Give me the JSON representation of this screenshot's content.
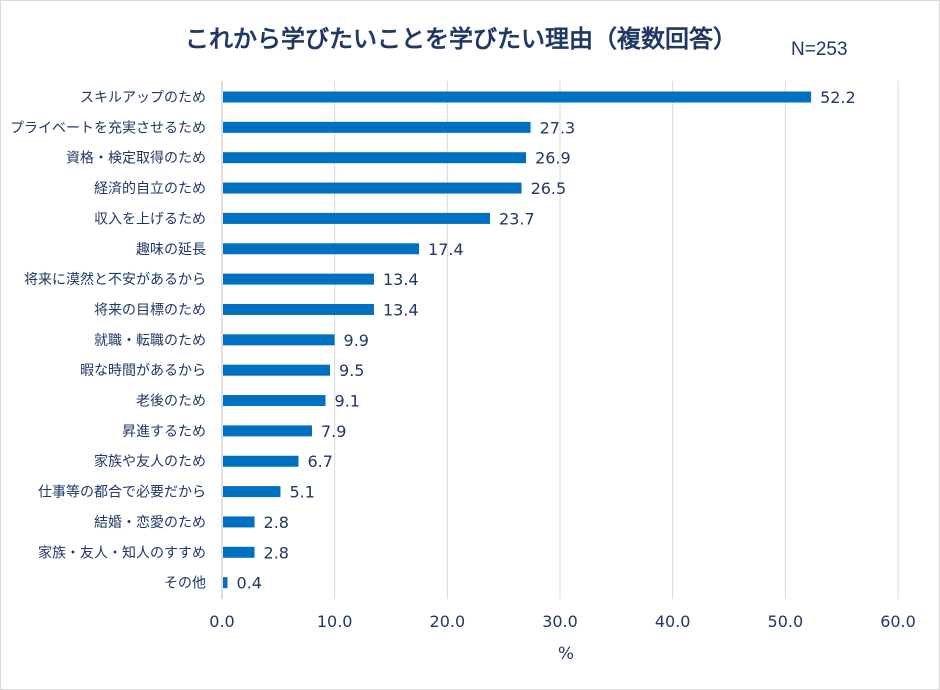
{
  "chart_data": {
    "type": "bar",
    "orientation": "horizontal",
    "title": "これから学びたいことを学びたい理由（複数回答）",
    "sample_size": "N=253",
    "xlabel": "%",
    "ylabel": "",
    "xlim": [
      0,
      60
    ],
    "x_ticks": [
      "0.0",
      "10.0",
      "20.0",
      "30.0",
      "40.0",
      "50.0",
      "60.0"
    ],
    "grid": "vertical",
    "bar_color": "#0070C0",
    "categories": [
      "スキルアップのため",
      "プライベートを充実させるため",
      "資格・検定取得のため",
      "経済的自立のため",
      "収入を上げるため",
      "趣味の延長",
      "将来に漠然と不安があるから",
      "将来の目標のため",
      "就職・転職のため",
      "暇な時間があるから",
      "老後のため",
      "昇進するため",
      "家族や友人のため",
      "仕事等の都合で必要だから",
      "結婚・恋愛のため",
      "家族・友人・知人のすすめ",
      "その他"
    ],
    "values": [
      52.2,
      27.3,
      26.9,
      26.5,
      23.7,
      17.4,
      13.4,
      13.4,
      9.9,
      9.5,
      9.1,
      7.9,
      6.7,
      5.1,
      2.8,
      2.8,
      0.4
    ],
    "value_labels": [
      "52.2",
      "27.3",
      "26.9",
      "26.5",
      "23.7",
      "17.4",
      "13.4",
      "13.4",
      "9.9",
      "9.5",
      "9.1",
      "7.9",
      "6.7",
      "5.1",
      "2.8",
      "2.8",
      "0.4"
    ]
  }
}
